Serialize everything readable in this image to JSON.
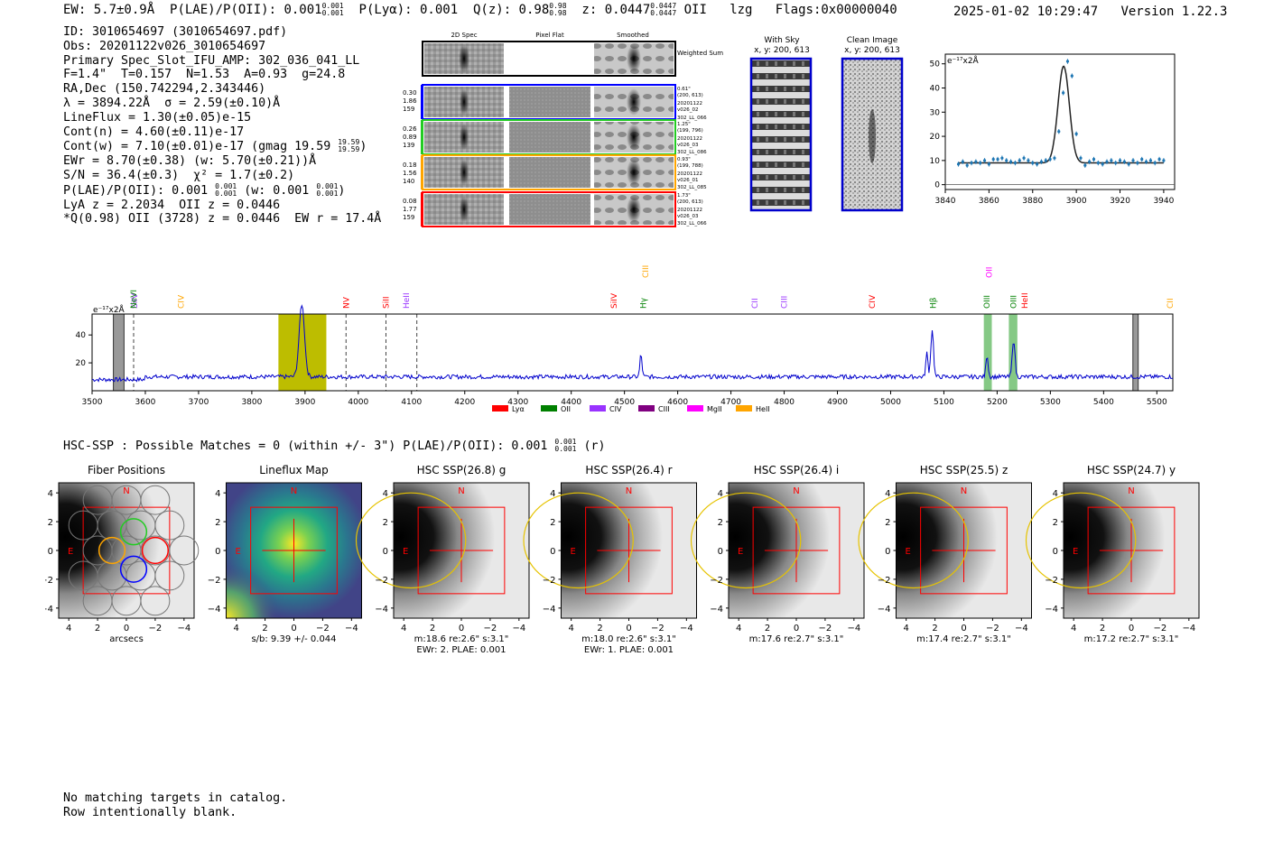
{
  "header": {
    "ew": "EW: 5.7±0.9Å",
    "plae_label": "P(LAE)/P(OII): 0.001",
    "plae_hi": "0.001",
    "plae_lo": "0.001",
    "plya": "P(Lyα): 0.001",
    "qz_label": "Q(z): 0.98",
    "qz_hi": "0.98",
    "qz_lo": "0.98",
    "z_label": "z: 0.0447",
    "z_hi": "0.0447",
    "z_lo": "0.0447",
    "line": "OII",
    "tag": "lzg",
    "flags": "Flags:0x00000040",
    "datetime": "2025-01-02 10:29:47",
    "version": "Version 1.22.3"
  },
  "info": {
    "lines": [
      "ID: 3010654697 (3010654697.pdf)",
      "Obs: 20201122v026_3010654697",
      "Primary Spec_Slot_IFU_AMP: 302_036_041_LL",
      "F=1.4\"  T=0.157  N=1.53  A=0.93  g=24.8",
      "RA,Dec (150.742294,2.343446)",
      "λ = 3894.22Å  σ = 2.59(±0.10)Å",
      "LineFlux = 1.30(±0.05)e-15",
      "Cont(n) = 4.60(±0.11)e-17",
      "Cont(w) = 7.10(±0.01)e-17 (gmag 19.59",
      "EWr = 8.70(±0.38) (w: 5.70(±0.21))Å",
      "S/N = 36.4(±0.3)  χ² = 1.7(±0.2)",
      "P(LAE)/P(OII): 0.001",
      "LyA z = 2.2034  OII z = 0.0446",
      "*Q(0.98) OII (3728) z = 0.0446  EW r = 17.4Å"
    ],
    "gmag_hi": "19.59",
    "gmag_lo": "19.59",
    "plae_hi": "0.001",
    "plae_lo": "0.001",
    "plae_w": "(w: 0.001",
    "plae_w_hi": "0.001",
    "plae_w_lo": "0.001"
  },
  "cutouts": {
    "col_headers": [
      "2D Spec",
      "Pixel Flat",
      "Smoothed"
    ],
    "weighted_label": "Weighted Sum",
    "fibers": [
      {
        "nums": [
          "0.30",
          "1.86",
          "159"
        ],
        "color": "#0000ff",
        "meta": [
          "0.61\"",
          "(200, 613)",
          "20201122",
          "v026_02",
          "302_LL_066"
        ]
      },
      {
        "nums": [
          "0.26",
          "0.89",
          "139"
        ],
        "color": "#22cc22",
        "meta": [
          "1.25\"",
          "(199, 796)",
          "20201122",
          "v026_03",
          "302_LL_086"
        ]
      },
      {
        "nums": [
          "0.18",
          "1.56",
          "140"
        ],
        "color": "#ffa500",
        "meta": [
          "0.93\"",
          "(199, 788)",
          "20201122",
          "v026_01",
          "302_LL_085"
        ]
      },
      {
        "nums": [
          "0.08",
          "1.77",
          "159"
        ],
        "color": "#ff0000",
        "meta": [
          "1.73\"",
          "(200, 613)",
          "20201122",
          "v026_03",
          "302_LL_066"
        ]
      }
    ],
    "with_sky_title": "With Sky",
    "with_sky_xy": "x, y: 200, 613",
    "clean_title": "Clean Image",
    "clean_xy": "x, y: 200, 613"
  },
  "chart_data": [
    {
      "type": "line",
      "name": "line-fit-zoom",
      "ylabel_unit": "e⁻¹⁷x2Å",
      "xlim": [
        3840,
        3945
      ],
      "ylim": [
        -2,
        54
      ],
      "xticks": [
        3840,
        3860,
        3880,
        3900,
        3920,
        3940
      ],
      "yticks": [
        0,
        10,
        20,
        30,
        40,
        50
      ],
      "data_x": [
        3846,
        3848,
        3850,
        3852,
        3854,
        3856,
        3858,
        3860,
        3862,
        3864,
        3866,
        3868,
        3870,
        3872,
        3874,
        3876,
        3878,
        3880,
        3882,
        3884,
        3886,
        3888,
        3890,
        3892,
        3894,
        3896,
        3898,
        3900,
        3902,
        3904,
        3906,
        3908,
        3910,
        3912,
        3914,
        3916,
        3918,
        3920,
        3922,
        3924,
        3926,
        3928,
        3930,
        3932,
        3934,
        3936,
        3938,
        3940
      ],
      "data_y": [
        8.5,
        9.5,
        8,
        9,
        9.5,
        9,
        10,
        8.5,
        10.5,
        10.5,
        11,
        10,
        9.5,
        9,
        10,
        11,
        10,
        9,
        8.5,
        9.5,
        10,
        10.5,
        11,
        22,
        38,
        51,
        45,
        21,
        11,
        8,
        9.5,
        10.5,
        9,
        8.5,
        9.5,
        10,
        9,
        10,
        9.5,
        8.5,
        10,
        9,
        10.5,
        9.5,
        10,
        9,
        10.5,
        10
      ],
      "fit_center": 3894.2,
      "fit_sigma": 2.59,
      "fit_amp": 40,
      "fit_cont": 9
    },
    {
      "type": "line",
      "name": "full-spectrum",
      "ylabel_unit": "e⁻¹⁷x2Å",
      "xlim": [
        3500,
        5530
      ],
      "ylim": [
        0,
        55
      ],
      "xticks": [
        3500,
        3600,
        3700,
        3800,
        3900,
        4000,
        4100,
        4200,
        4300,
        4400,
        4500,
        4600,
        4700,
        4800,
        4900,
        5000,
        5100,
        5200,
        5300,
        5400,
        5500
      ],
      "yticks": [
        20,
        40
      ],
      "continuum": 10,
      "features": [
        {
          "x": 3894,
          "height": 52,
          "width": 5
        },
        {
          "x": 4531,
          "height": 16,
          "width": 2
        },
        {
          "x": 5068,
          "height": 17,
          "width": 2
        },
        {
          "x": 5078,
          "height": 34,
          "width": 2.5
        },
        {
          "x": 5181,
          "height": 16,
          "width": 2
        },
        {
          "x": 5231,
          "height": 27,
          "width": 2.5
        }
      ],
      "highlight_band": [
        3850,
        3940
      ],
      "lines_marked": [
        {
          "label": "SiIV",
          "x": 3580,
          "color": "#9933ff",
          "row": 1
        },
        {
          "label": "NeVI",
          "x": 3578,
          "color": "#008000",
          "row": 1
        },
        {
          "label": "CIV",
          "x": 3667,
          "color": "#ffa500",
          "row": 1
        },
        {
          "label": "NV",
          "x": 3977,
          "color": "#ff0000",
          "row": 1
        },
        {
          "label": "SiII",
          "x": 4052,
          "color": "#ff0000",
          "row": 1
        },
        {
          "label": "HeII",
          "x": 4090,
          "color": "#9933ff",
          "row": 1
        },
        {
          "label": "CIII",
          "x": 4540,
          "color": "#ffa500",
          "row": 0
        },
        {
          "label": "SiIV",
          "x": 4480,
          "color": "#ff0000",
          "row": 1
        },
        {
          "label": "Hγ",
          "x": 4535,
          "color": "#008000",
          "row": 1
        },
        {
          "label": "CII",
          "x": 4745,
          "color": "#9933ff",
          "row": 1
        },
        {
          "label": "CIII",
          "x": 4800,
          "color": "#9933ff",
          "row": 1
        },
        {
          "label": "CIV",
          "x": 4965,
          "color": "#ff0000",
          "row": 1
        },
        {
          "label": "Hβ",
          "x": 5080,
          "color": "#008000",
          "row": 1
        },
        {
          "label": "OII",
          "x": 5185,
          "color": "#ff00ff",
          "row": 0
        },
        {
          "label": "OIII",
          "x": 5181,
          "color": "#008000",
          "row": 1
        },
        {
          "label": "OIII",
          "x": 5231,
          "color": "#008000",
          "row": 1
        },
        {
          "label": "HeII",
          "x": 5252,
          "color": "#ff0000",
          "row": 1
        },
        {
          "label": "CII",
          "x": 5525,
          "color": "#ffa500",
          "row": 1
        }
      ],
      "legend": [
        {
          "label": "Lyα",
          "color": "#ff0000"
        },
        {
          "label": "OII",
          "color": "#008000"
        },
        {
          "label": "CIV",
          "color": "#9933ff"
        },
        {
          "label": "CIII",
          "color": "#800080"
        },
        {
          "label": "MgII",
          "color": "#ff00ff"
        },
        {
          "label": "HeII",
          "color": "#ffa500"
        }
      ]
    }
  ],
  "hsc": {
    "summary": "HSC-SSP : Possible Matches = 0 (within +/- 3\")  P(LAE)/P(OII): 0.001",
    "summary_hi": "0.001",
    "summary_lo": "0.001",
    "summary_tail": "(r)",
    "axis_ticks": [
      "4",
      "2",
      "0",
      "−2",
      "−4"
    ],
    "panels": [
      {
        "title": "Fiber Positions",
        "caption1": "arcsecs",
        "caption2": ""
      },
      {
        "title": "Lineflux Map",
        "caption1": "s/b: 9.39 +/- 0.044",
        "caption2": ""
      },
      {
        "title": "HSC SSP(26.8) g",
        "caption1": "m:18.6  re:2.6\"  s:3.1\"",
        "caption2": "EWr: 2. PLAE: 0.001"
      },
      {
        "title": "HSC SSP(26.4) r",
        "caption1": "m:18.0  re:2.6\"  s:3.1\"",
        "caption2": "EWr: 1. PLAE: 0.001"
      },
      {
        "title": "HSC SSP(26.4) i",
        "caption1": "m:17.6  re:2.7\"  s:3.1\"",
        "caption2": ""
      },
      {
        "title": "HSC SSP(25.5) z",
        "caption1": "m:17.4  re:2.7\"  s:3.1\"",
        "caption2": ""
      },
      {
        "title": "HSC SSP(24.7) y",
        "caption1": "m:17.2  re:2.7\"  s:3.1\"",
        "caption2": ""
      }
    ],
    "compass_n": "N",
    "compass_e": "E"
  },
  "footer": {
    "line1": "No matching targets in catalog.",
    "line2": "Row intentionally blank."
  }
}
